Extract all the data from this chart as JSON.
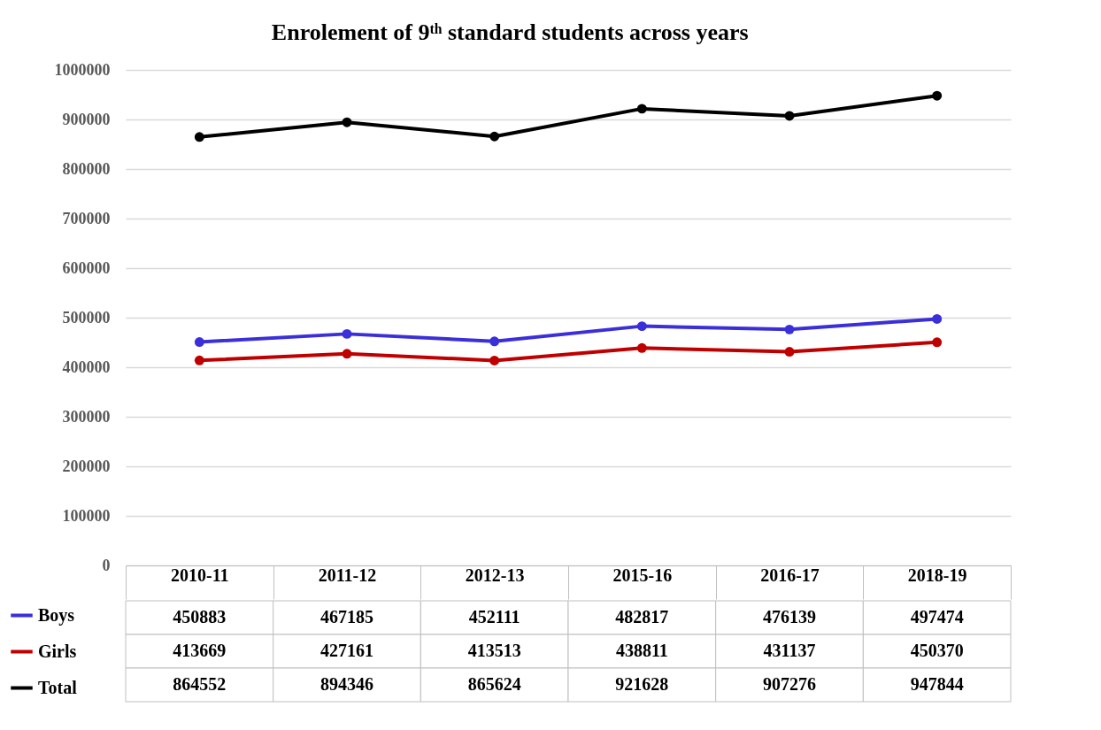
{
  "chart_data": {
    "type": "line",
    "title": "Enrolement of 9ᵗʰ standard students across years",
    "categories": [
      "2010-11",
      "2011-12",
      "2012-13",
      "2015-16",
      "2016-17",
      "2018-19"
    ],
    "series": [
      {
        "name": "Boys",
        "color": "#3b2fd9",
        "values": [
          450883,
          467185,
          452111,
          482817,
          476139,
          497474
        ]
      },
      {
        "name": "Girls",
        "color": "#c00000",
        "values": [
          413669,
          427161,
          413513,
          438811,
          431137,
          450370
        ]
      },
      {
        "name": "Total",
        "color": "#000000",
        "values": [
          864552,
          894346,
          865624,
          921628,
          907276,
          947844
        ]
      }
    ],
    "ylim": [
      0,
      1000000
    ],
    "yticks": [
      0,
      100000,
      200000,
      300000,
      400000,
      500000,
      600000,
      700000,
      800000,
      900000,
      1000000
    ],
    "grid": "y",
    "legend": "bottom left",
    "marker": "circle",
    "line_style": "solid",
    "data_labels": true
  }
}
